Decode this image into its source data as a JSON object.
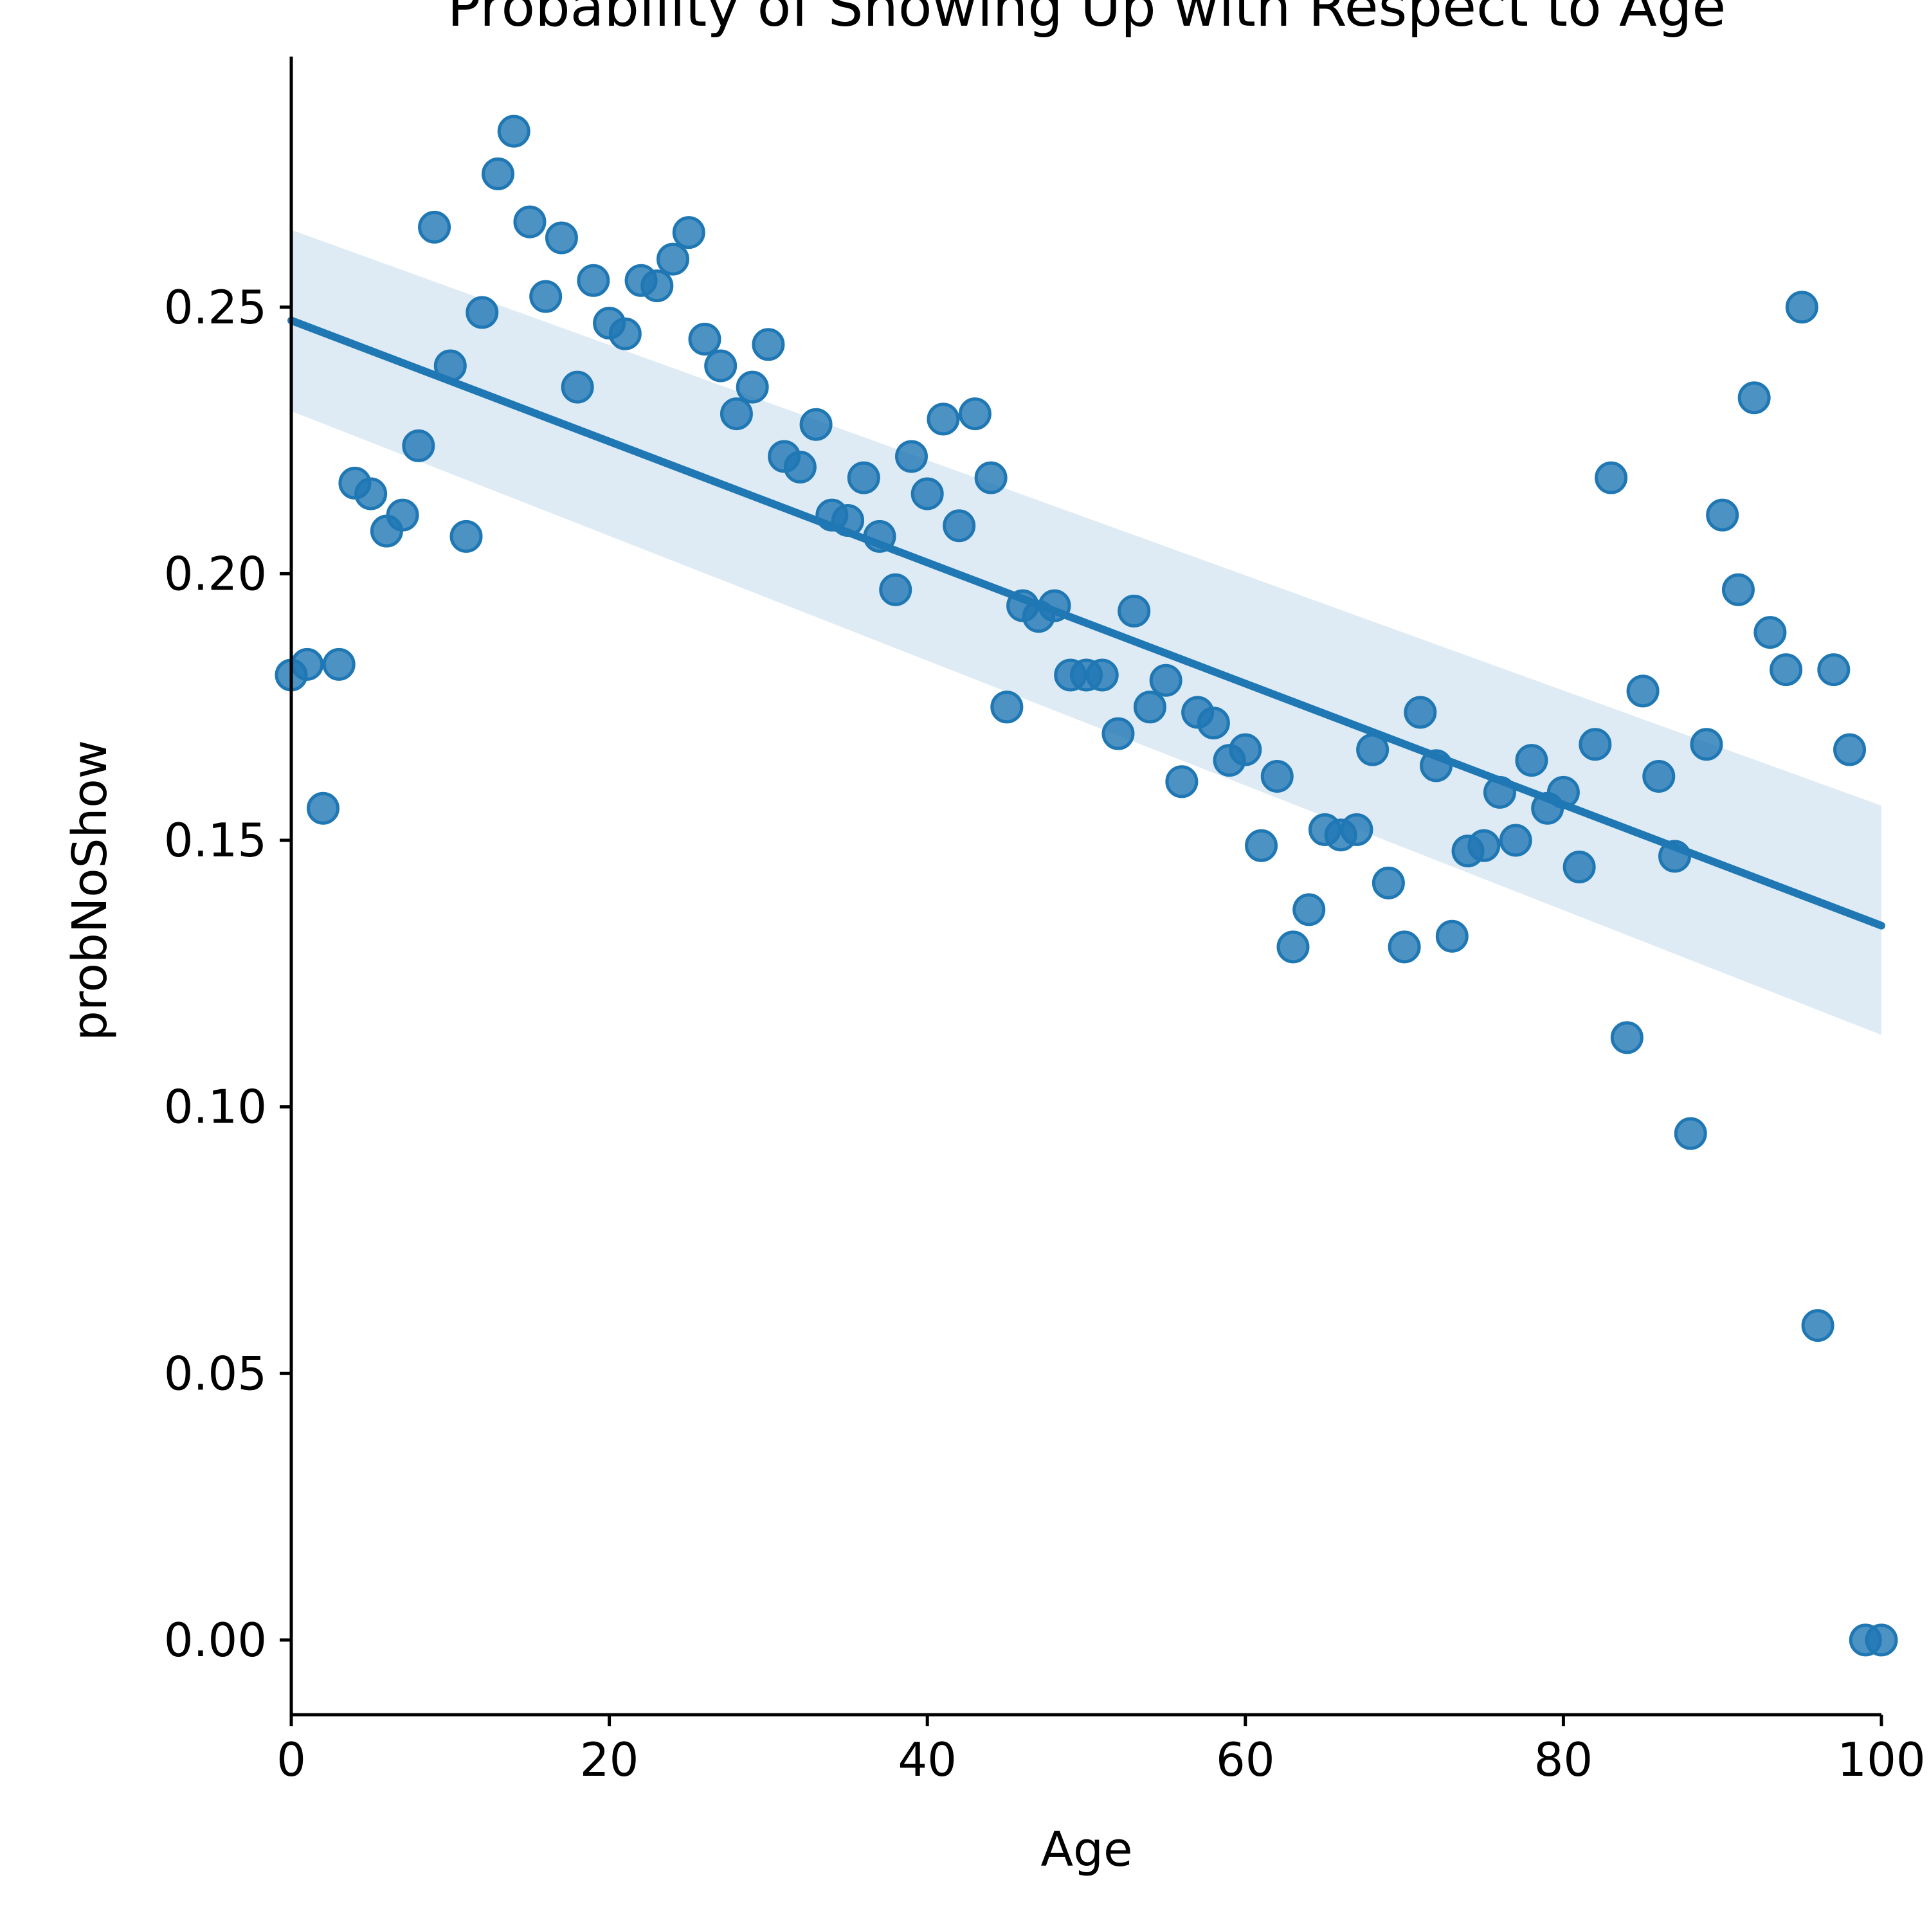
{
  "chart_data": {
    "type": "scatter",
    "title": "Probability of Showing Up with Respect to Age",
    "xlabel": "Age",
    "ylabel": "probNoShow",
    "xlim": [
      0,
      100
    ],
    "ylim": [
      -0.014,
      0.297
    ],
    "x_ticks": [
      0,
      20,
      40,
      60,
      80,
      100
    ],
    "x_tick_labels": [
      "0",
      "20",
      "40",
      "60",
      "80",
      "100"
    ],
    "y_ticks": [
      0.0,
      0.05,
      0.1,
      0.15,
      0.2,
      0.25
    ],
    "y_tick_labels": [
      "0.00",
      "0.05",
      "0.10",
      "0.15",
      "0.20",
      "0.25"
    ],
    "grid": false,
    "colors": {
      "points": "#1f77b4",
      "line": "#1f77b4",
      "band": "#1f77b4"
    },
    "series": [
      {
        "x": [
          0,
          1,
          2,
          3,
          4,
          5,
          6,
          7,
          8,
          9,
          10,
          11,
          12,
          13,
          14,
          15,
          16,
          17,
          18,
          19,
          20,
          21,
          22,
          23,
          24,
          25,
          26,
          27,
          28,
          29,
          30,
          31,
          32,
          33,
          34,
          35,
          36,
          37,
          38,
          39,
          40,
          41,
          42,
          43,
          44,
          45,
          46,
          47,
          48,
          49,
          50,
          51,
          52,
          53,
          54,
          55,
          56,
          57,
          58,
          59,
          60,
          61,
          62,
          63,
          64,
          65,
          66,
          67,
          68,
          69,
          70,
          71,
          72,
          73,
          74,
          75,
          76,
          77,
          78,
          79,
          80,
          81,
          82,
          83,
          84,
          85,
          86,
          87,
          88,
          89,
          90,
          91,
          92,
          93,
          94,
          95,
          96,
          97,
          98,
          99,
          100
        ],
        "y": [
          0.181,
          0.183,
          0.156,
          0.183,
          0.217,
          0.215,
          0.208,
          0.211,
          0.224,
          0.265,
          0.239,
          0.207,
          0.249,
          0.275,
          0.283,
          0.266,
          0.252,
          0.263,
          0.235,
          0.255,
          0.247,
          0.245,
          0.255,
          0.254,
          0.259,
          0.264,
          0.244,
          0.239,
          0.23,
          0.235,
          0.243,
          0.222,
          0.22,
          0.228,
          0.211,
          0.21,
          0.218,
          0.207,
          0.197,
          0.222,
          0.215,
          0.229,
          0.209,
          0.23,
          0.218,
          0.175,
          0.194,
          0.192,
          0.194,
          0.181,
          0.181,
          0.181,
          0.17,
          0.193,
          0.175,
          0.18,
          0.161,
          0.174,
          0.172,
          0.165,
          0.167,
          0.149,
          0.162,
          0.13,
          0.137,
          0.152,
          0.151,
          0.152,
          0.167,
          0.142,
          0.13,
          0.174,
          0.164,
          0.132,
          0.148,
          0.149,
          0.159,
          0.15,
          0.165,
          0.156,
          0.159,
          0.145,
          0.168,
          0.218,
          0.113,
          0.178,
          0.162,
          0.147,
          0.095,
          0.168,
          0.211,
          0.197,
          0.233,
          0.189,
          0.182,
          0.25,
          0.059,
          0.182,
          0.167,
          0.0,
          0.0
        ]
      }
    ],
    "regression": {
      "x": [
        0,
        100
      ],
      "y": [
        0.2475,
        0.134
      ],
      "band_lower": [
        0.2305,
        0.1135
      ],
      "band_upper": [
        0.2645,
        0.1565
      ]
    }
  }
}
